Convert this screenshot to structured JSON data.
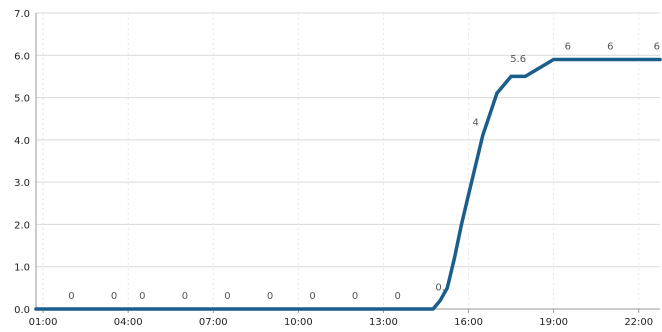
{
  "chart_data": {
    "type": "line",
    "title": "",
    "xlabel": "",
    "ylabel": "",
    "ylim": [
      0,
      7
    ],
    "xlim": [
      "00:45",
      "22:45"
    ],
    "y_ticks": [
      "0.0",
      "1.0",
      "2.0",
      "3.0",
      "4.0",
      "5.0",
      "6.0",
      "7.0"
    ],
    "x_ticks": [
      "01:00",
      "04:00",
      "07:00",
      "10:00",
      "13:00",
      "16:00",
      "19:00",
      "22:00"
    ],
    "grid": true,
    "legend": "none",
    "line_color": "#1a5e8c",
    "series": [
      {
        "points": [
          {
            "x": "00:45",
            "y": 0.0
          },
          {
            "x": "14:45",
            "y": 0.0
          },
          {
            "x": "15:00",
            "y": 0.2
          },
          {
            "x": "15:15",
            "y": 0.5
          },
          {
            "x": "15:30",
            "y": 1.2
          },
          {
            "x": "15:45",
            "y": 2.0
          },
          {
            "x": "16:00",
            "y": 2.7
          },
          {
            "x": "16:30",
            "y": 4.1
          },
          {
            "x": "17:00",
            "y": 5.1
          },
          {
            "x": "17:30",
            "y": 5.5
          },
          {
            "x": "18:00",
            "y": 5.5
          },
          {
            "x": "19:00",
            "y": 5.9
          },
          {
            "x": "22:45",
            "y": 5.9
          }
        ]
      }
    ],
    "data_labels": [
      {
        "x": "02:00",
        "y": 0,
        "text": "0"
      },
      {
        "x": "03:30",
        "y": 0,
        "text": "0"
      },
      {
        "x": "04:30",
        "y": 0,
        "text": "0"
      },
      {
        "x": "06:00",
        "y": 0,
        "text": "0"
      },
      {
        "x": "07:30",
        "y": 0,
        "text": "0"
      },
      {
        "x": "09:00",
        "y": 0,
        "text": "0"
      },
      {
        "x": "10:30",
        "y": 0,
        "text": "0"
      },
      {
        "x": "12:00",
        "y": 0,
        "text": "0"
      },
      {
        "x": "13:30",
        "y": 0,
        "text": "0"
      },
      {
        "x": "15:00",
        "y": 0.2,
        "text": "0."
      },
      {
        "x": "16:15",
        "y": 4.1,
        "text": "4"
      },
      {
        "x": "17:45",
        "y": 5.6,
        "text": "5.6"
      },
      {
        "x": "19:30",
        "y": 5.9,
        "text": "6"
      },
      {
        "x": "21:00",
        "y": 5.9,
        "text": "6"
      },
      {
        "x": "22:45",
        "y": 5.9,
        "text": "6"
      }
    ]
  }
}
